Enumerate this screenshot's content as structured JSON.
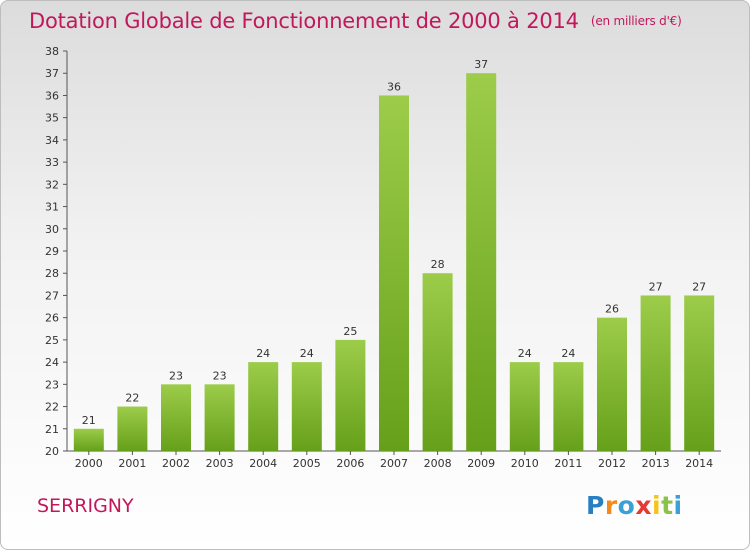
{
  "chart_data": {
    "type": "bar",
    "title": "Dotation Globale de Fonctionnement de 2000 à 2014",
    "subtitle": "(en milliers d'€)",
    "categories": [
      "2000",
      "2001",
      "2002",
      "2003",
      "2004",
      "2005",
      "2006",
      "2007",
      "2008",
      "2009",
      "2010",
      "2011",
      "2012",
      "2013",
      "2014"
    ],
    "values": [
      21,
      22,
      23,
      23,
      24,
      24,
      25,
      36,
      28,
      37,
      24,
      24,
      26,
      27,
      27
    ],
    "ylim": [
      20,
      38
    ],
    "yticks": [
      20,
      21,
      22,
      23,
      24,
      25,
      26,
      27,
      28,
      29,
      30,
      31,
      32,
      33,
      34,
      35,
      36,
      37,
      38
    ],
    "grid": false,
    "bar_color_top": "#9ccc4a",
    "bar_color_bottom": "#66a01a",
    "title_color": "#c2185b"
  },
  "commune": "SERRIGNY",
  "logo": {
    "letters": [
      "P",
      "r",
      "o",
      "x",
      "i",
      "t",
      "i"
    ],
    "colors": [
      "#2a7fc1",
      "#f28a1c",
      "#3aa0d8",
      "#e53935",
      "#f7c31a",
      "#8bc34a",
      "#3aa0d8"
    ]
  }
}
